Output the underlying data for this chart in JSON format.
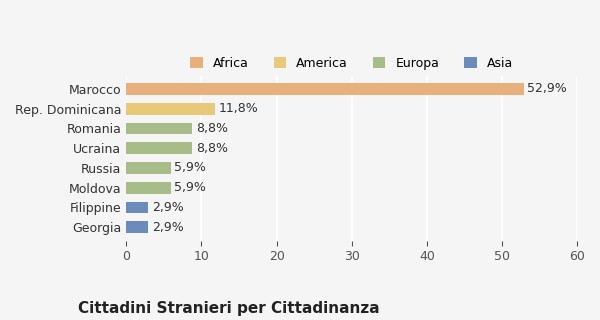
{
  "categories": [
    "Georgia",
    "Filippine",
    "Moldova",
    "Russia",
    "Ucraina",
    "Romania",
    "Rep. Dominicana",
    "Marocco"
  ],
  "values": [
    2.9,
    2.9,
    5.9,
    5.9,
    8.8,
    8.8,
    11.8,
    52.9
  ],
  "bar_colors": [
    "#6b8cba",
    "#6b8cba",
    "#a8bc8a",
    "#a8bc8a",
    "#a8bc8a",
    "#a8bc8a",
    "#e8c97a",
    "#e8b07a"
  ],
  "labels": [
    "2,9%",
    "2,9%",
    "5,9%",
    "5,9%",
    "8,8%",
    "8,8%",
    "11,8%",
    "52,9%"
  ],
  "legend_labels": [
    "Africa",
    "America",
    "Europa",
    "Asia"
  ],
  "legend_colors": [
    "#e8b07a",
    "#e8c97a",
    "#a8bc8a",
    "#6b8cba"
  ],
  "title": "Cittadini Stranieri per Cittadinanza",
  "xlim": [
    0,
    60
  ],
  "xticks": [
    0,
    10,
    20,
    30,
    40,
    50,
    60
  ],
  "background_color": "#f5f5f5",
  "bar_height": 0.6,
  "label_fontsize": 9,
  "title_fontsize": 11,
  "subtitle_fontsize": 8.5
}
